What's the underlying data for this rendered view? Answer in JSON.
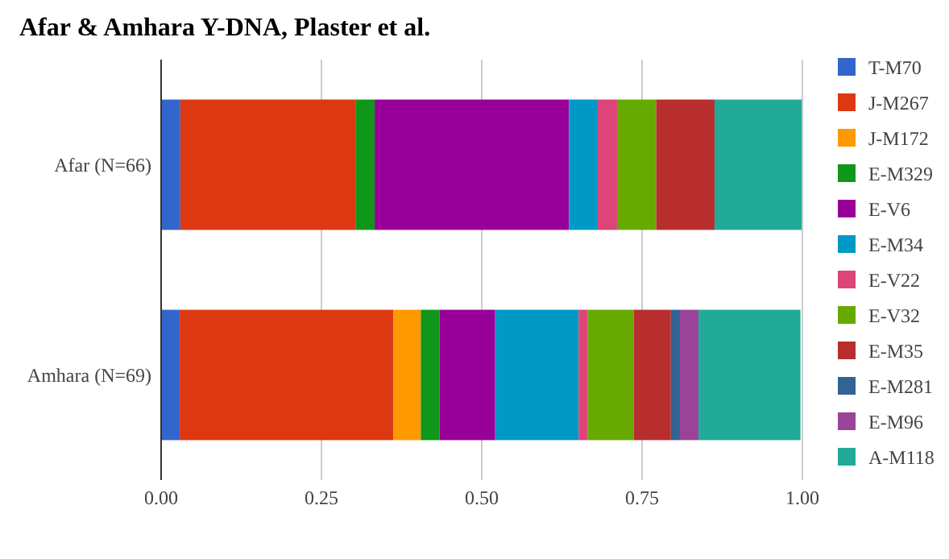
{
  "chart_data": {
    "type": "bar",
    "title": "Afar & Amhara Y-DNA, Plaster et al.",
    "orientation": "horizontal",
    "stacked": true,
    "categories": [
      "Afar (N=66)",
      "Amhara (N=69)"
    ],
    "xlim": [
      0,
      1
    ],
    "xticks": [
      {
        "value": 0,
        "label": "0.00"
      },
      {
        "value": 0.25,
        "label": "0.25"
      },
      {
        "value": 0.5,
        "label": "0.50"
      },
      {
        "value": 0.75,
        "label": "0.75"
      },
      {
        "value": 1,
        "label": "1.00"
      }
    ],
    "grid": "x",
    "legend": "right",
    "series": [
      {
        "name": "T-M70",
        "color": "#3366cc",
        "values": [
          0.03,
          0.029
        ]
      },
      {
        "name": "J-M267",
        "color": "#dc3912",
        "values": [
          0.273,
          0.333
        ]
      },
      {
        "name": "J-M172",
        "color": "#ff9900",
        "values": [
          0,
          0.043
        ]
      },
      {
        "name": "E-M329",
        "color": "#109618",
        "values": [
          0.03,
          0.029
        ]
      },
      {
        "name": "E-V6",
        "color": "#990099",
        "values": [
          0.303,
          0.087
        ]
      },
      {
        "name": "E-M34",
        "color": "#0099c6",
        "values": [
          0.045,
          0.13
        ]
      },
      {
        "name": "E-V22",
        "color": "#dd4477",
        "values": [
          0.03,
          0.014
        ]
      },
      {
        "name": "E-V32",
        "color": "#66aa00",
        "values": [
          0.061,
          0.072
        ]
      },
      {
        "name": "E-M35",
        "color": "#b82e2e",
        "values": [
          0.091,
          0.058
        ]
      },
      {
        "name": "E-M281",
        "color": "#316395",
        "values": [
          0,
          0.014
        ]
      },
      {
        "name": "E-M96",
        "color": "#994499",
        "values": [
          0,
          0.029
        ]
      },
      {
        "name": "A-M118",
        "color": "#22aa99",
        "values": [
          0.136,
          0.159
        ]
      }
    ]
  }
}
